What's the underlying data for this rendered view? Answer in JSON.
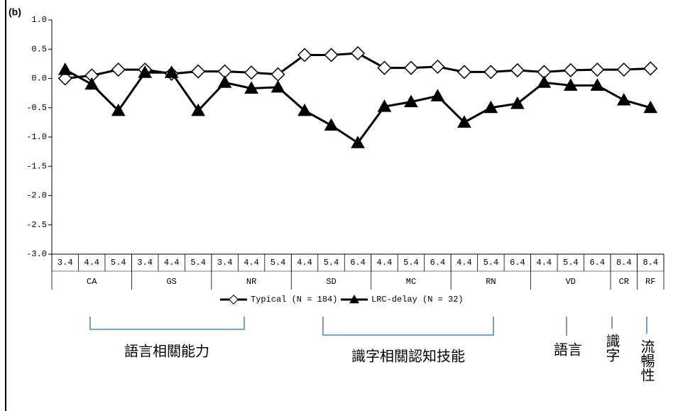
{
  "chart_data": {
    "type": "line",
    "panel_label": "(b)",
    "categories": [
      "3.4",
      "4.4",
      "5.4",
      "3.4",
      "4.4",
      "5.4",
      "3.4",
      "4.4",
      "5.4",
      "4.4",
      "5.4",
      "6.4",
      "4.4",
      "5.4",
      "6.4",
      "4.4",
      "5.4",
      "6.4",
      "4.4",
      "5.4",
      "6.4",
      "8.4",
      "8.4"
    ],
    "group_categories": [
      null,
      "CA",
      null,
      null,
      "GS",
      null,
      null,
      "NR",
      null,
      null,
      "SD",
      null,
      null,
      "MC",
      null,
      null,
      "RN",
      null,
      null,
      "VD",
      null,
      "CR",
      "RF"
    ],
    "series": [
      {
        "name": "Typical (N = 184)",
        "color": "#000000",
        "marker": "diamond",
        "values": [
          0.0,
          0.05,
          0.15,
          0.15,
          0.08,
          0.12,
          0.12,
          0.1,
          0.07,
          0.4,
          0.4,
          0.43,
          0.18,
          0.18,
          0.2,
          0.11,
          0.11,
          0.14,
          0.11,
          0.14,
          0.15,
          0.15,
          0.17
        ]
      },
      {
        "name": "LRC-delay (N = 32)",
        "color": "#000000",
        "marker": "triangle",
        "values": [
          0.15,
          -0.1,
          -0.55,
          0.1,
          0.1,
          -0.55,
          -0.07,
          -0.17,
          -0.15,
          -0.55,
          -0.8,
          -1.1,
          -0.48,
          -0.4,
          -0.3,
          -0.75,
          -0.5,
          -0.43,
          -0.07,
          -0.12,
          -0.12,
          -0.37,
          -0.5
        ]
      }
    ],
    "ylim": [
      -3.0,
      1.0
    ],
    "yticks": [
      {
        "value": -3.0,
        "label": "-3.0"
      },
      -2.5,
      {
        "value": -2.0,
        "label": "-2.0"
      },
      -1.5,
      {
        "value": -1.0,
        "label": "-1.0"
      },
      -0.5,
      {
        "value": 0.0,
        "label": "0.0"
      },
      0.5,
      {
        "value": 1.0,
        "label": "1.0"
      }
    ],
    "annotations": [
      "語言相關能力",
      "識字相關認知技能",
      "語言",
      "識字",
      "流暢性"
    ]
  }
}
